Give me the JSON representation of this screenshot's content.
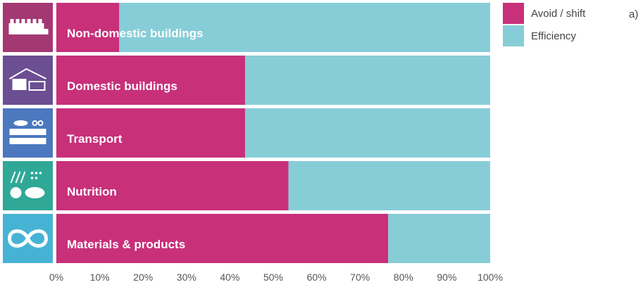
{
  "chart_data": {
    "type": "bar",
    "stacked": true,
    "orientation": "horizontal",
    "categories": [
      "Non-domestic buildings",
      "Domestic buildings",
      "Transport",
      "Nutrition",
      "Materials & products"
    ],
    "series": [
      {
        "name": "Avoid / shift",
        "values": [
          14.5,
          43.5,
          43.5,
          53.5,
          76.5
        ]
      },
      {
        "name": "Efficiency",
        "values": [
          85.5,
          56.5,
          56.5,
          46.5,
          23.5
        ]
      }
    ],
    "xlim": [
      0,
      100
    ],
    "x_ticks": [
      "0%",
      "10%",
      "20%",
      "30%",
      "40%",
      "50%",
      "60%",
      "70%",
      "80%",
      "90%",
      "100%"
    ],
    "colors": {
      "Avoid / shift": "#C8307A",
      "Efficiency": "#87CDD7"
    },
    "legend_placement": "top-right",
    "panel_label": "a)",
    "grid": false
  },
  "icons": [
    {
      "name": "factory-icon",
      "bg": "#A43873"
    },
    {
      "name": "house-icon",
      "bg": "#6C4E93"
    },
    {
      "name": "vehicles-icon",
      "bg": "#4B78BE"
    },
    {
      "name": "food-icon",
      "bg": "#2FA897"
    },
    {
      "name": "recycle-loop-icon",
      "bg": "#47B3D4"
    }
  ]
}
